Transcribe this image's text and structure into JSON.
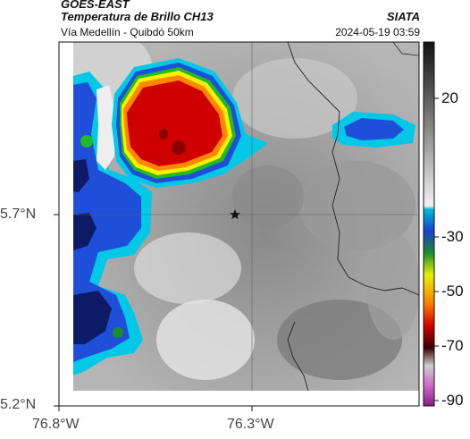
{
  "header": {
    "title": "GOES-EAST",
    "subtitle": "Temperatura de Brillo CH13",
    "location": "Vía Medellín - Quibdó 50km",
    "brand": "SIATA",
    "timestamp": "2024-05-19 03:59"
  },
  "axes": {
    "lat_ticks": [
      "5.7°N",
      "5.2°N"
    ],
    "lon_ticks": [
      "76.8°W",
      "76.3°W"
    ]
  },
  "colorbar": {
    "ticks": [
      "20",
      "-30",
      "-50",
      "-70",
      "-90"
    ],
    "colors": {
      "cold": "#d10000",
      "orange": "#ff8800",
      "yellow": "#ffee00",
      "green": "#22bb22",
      "blue": "#1f4fd8",
      "navy": "#0d1a66",
      "cyan": "#00ccee",
      "magenta": "#b040b0"
    }
  },
  "markers": {
    "reference_icon": "star-icon"
  }
}
